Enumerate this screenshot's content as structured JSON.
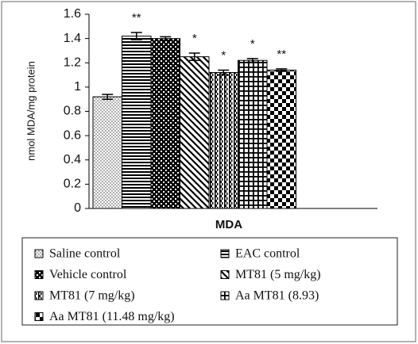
{
  "chart_data": {
    "type": "bar",
    "y_label": "nmol MDA/mg protein",
    "categories": [
      "MDA"
    ],
    "ylim": [
      0,
      1.6
    ],
    "yticks": [
      0,
      0.2,
      0.4,
      0.6,
      0.8,
      1,
      1.2,
      1.4,
      1.6
    ],
    "series": [
      {
        "name": "Saline control",
        "color": "#000000",
        "values": [
          0.92
        ],
        "errors": [
          0.02
        ]
      },
      {
        "name": "EAC control",
        "color": "#000000",
        "values": [
          1.42
        ],
        "errors": [
          0.03
        ],
        "significance": "**"
      },
      {
        "name": "Vehicle control",
        "color": "#000000",
        "values": [
          1.4
        ],
        "errors": [
          0.015
        ]
      },
      {
        "name": "MT81 (5 mg/kg)",
        "color": "#000000",
        "values": [
          1.25
        ],
        "errors": [
          0.03
        ],
        "significance": "*"
      },
      {
        "name": "MT81 (7 mg/kg)",
        "color": "#000000",
        "values": [
          1.12
        ],
        "errors": [
          0.02
        ],
        "significance": "*"
      },
      {
        "name": "Aa MT81 (8.93)",
        "color": "#000000",
        "values": [
          1.22
        ],
        "errors": [
          0.015
        ],
        "significance": "*"
      },
      {
        "name": "Aa MT81 (11.48 mg/kg)",
        "color": "#000000",
        "values": [
          1.14
        ],
        "errors": [
          0.01
        ],
        "significance": "**"
      }
    ]
  }
}
